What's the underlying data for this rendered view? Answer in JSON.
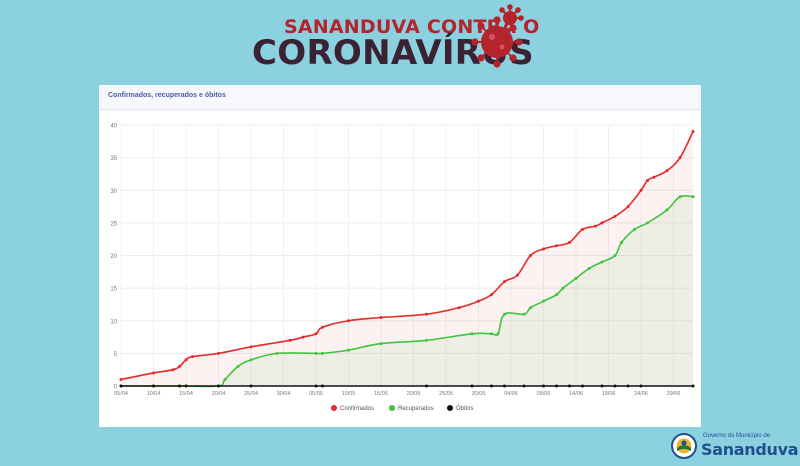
{
  "header": {
    "line1": "SANANDUVA CONTRA O",
    "line2": "CORONAVÍRUS"
  },
  "card": {
    "title": "Confirmados, recuperados e óbitos"
  },
  "footer": {
    "small": "Governo do Município de",
    "big": "Sananduva"
  },
  "colors": {
    "confirmed": "#e52a2a",
    "recovered": "#3ec43e",
    "deaths": "#111111"
  },
  "chart_data": {
    "type": "line",
    "title": "Confirmados, recuperados e óbitos",
    "xlabel": "",
    "ylabel": "",
    "ylim": [
      0,
      40
    ],
    "yticks": [
      0,
      5,
      10,
      15,
      20,
      25,
      30,
      35,
      40
    ],
    "grid": true,
    "legend": "bottom",
    "x_ticks": [
      "05/04",
      "10/04",
      "15/04",
      "20/04",
      "25/04",
      "30/04",
      "05/05",
      "10/05",
      "15/05",
      "20/05",
      "25/05",
      "30/05",
      "04/06",
      "09/06",
      "14/06",
      "19/06",
      "24/06",
      "29/06"
    ],
    "x_range": [
      0,
      88
    ],
    "series": [
      {
        "name": "Confirmados",
        "color": "#e52a2a",
        "points": [
          [
            0,
            1
          ],
          [
            5,
            2
          ],
          [
            8,
            2.5
          ],
          [
            9,
            3
          ],
          [
            10,
            4
          ],
          [
            11,
            4.5
          ],
          [
            15,
            5
          ],
          [
            20,
            6
          ],
          [
            26,
            7
          ],
          [
            28,
            7.5
          ],
          [
            30,
            8
          ],
          [
            31,
            9
          ],
          [
            35,
            10
          ],
          [
            40,
            10.5
          ],
          [
            47,
            11
          ],
          [
            52,
            12
          ],
          [
            55,
            13
          ],
          [
            57,
            14
          ],
          [
            59,
            16
          ],
          [
            61,
            17
          ],
          [
            63,
            20
          ],
          [
            65,
            21
          ],
          [
            67,
            21.5
          ],
          [
            69,
            22
          ],
          [
            71,
            24
          ],
          [
            73,
            24.5
          ],
          [
            74,
            25
          ],
          [
            76,
            26
          ],
          [
            78,
            27.5
          ],
          [
            80,
            30
          ],
          [
            81,
            31.5
          ],
          [
            82,
            32
          ],
          [
            84,
            33
          ],
          [
            86,
            35
          ],
          [
            88,
            39
          ]
        ]
      },
      {
        "name": "Recuperados",
        "color": "#3ec43e",
        "points": [
          [
            0,
            0
          ],
          [
            5,
            0
          ],
          [
            9,
            0
          ],
          [
            10,
            0
          ],
          [
            15,
            0
          ],
          [
            16,
            1
          ],
          [
            18,
            3
          ],
          [
            20,
            4
          ],
          [
            24,
            5
          ],
          [
            30,
            5
          ],
          [
            31,
            5
          ],
          [
            35,
            5.5
          ],
          [
            40,
            6.5
          ],
          [
            47,
            7
          ],
          [
            54,
            8
          ],
          [
            57,
            8
          ],
          [
            58,
            8
          ],
          [
            59,
            11
          ],
          [
            62,
            11
          ],
          [
            63,
            12
          ],
          [
            65,
            13
          ],
          [
            67,
            14
          ],
          [
            68,
            15
          ],
          [
            70,
            16.5
          ],
          [
            72,
            18
          ],
          [
            74,
            19
          ],
          [
            76,
            20
          ],
          [
            77,
            22
          ],
          [
            79,
            24
          ],
          [
            81,
            25
          ],
          [
            84,
            27
          ],
          [
            86,
            29
          ],
          [
            88,
            29
          ]
        ]
      },
      {
        "name": "Óbitos",
        "color": "#111111",
        "points": [
          [
            0,
            0
          ],
          [
            5,
            0
          ],
          [
            9,
            0
          ],
          [
            10,
            0
          ],
          [
            15,
            0
          ],
          [
            20,
            0
          ],
          [
            30,
            0
          ],
          [
            31,
            0
          ],
          [
            47,
            0
          ],
          [
            54,
            0
          ],
          [
            57,
            0
          ],
          [
            59,
            0
          ],
          [
            62,
            0
          ],
          [
            65,
            0
          ],
          [
            67,
            0
          ],
          [
            69,
            0
          ],
          [
            71,
            0
          ],
          [
            74,
            0
          ],
          [
            76,
            0
          ],
          [
            78,
            0
          ],
          [
            80,
            0
          ],
          [
            88,
            0
          ]
        ]
      }
    ]
  }
}
